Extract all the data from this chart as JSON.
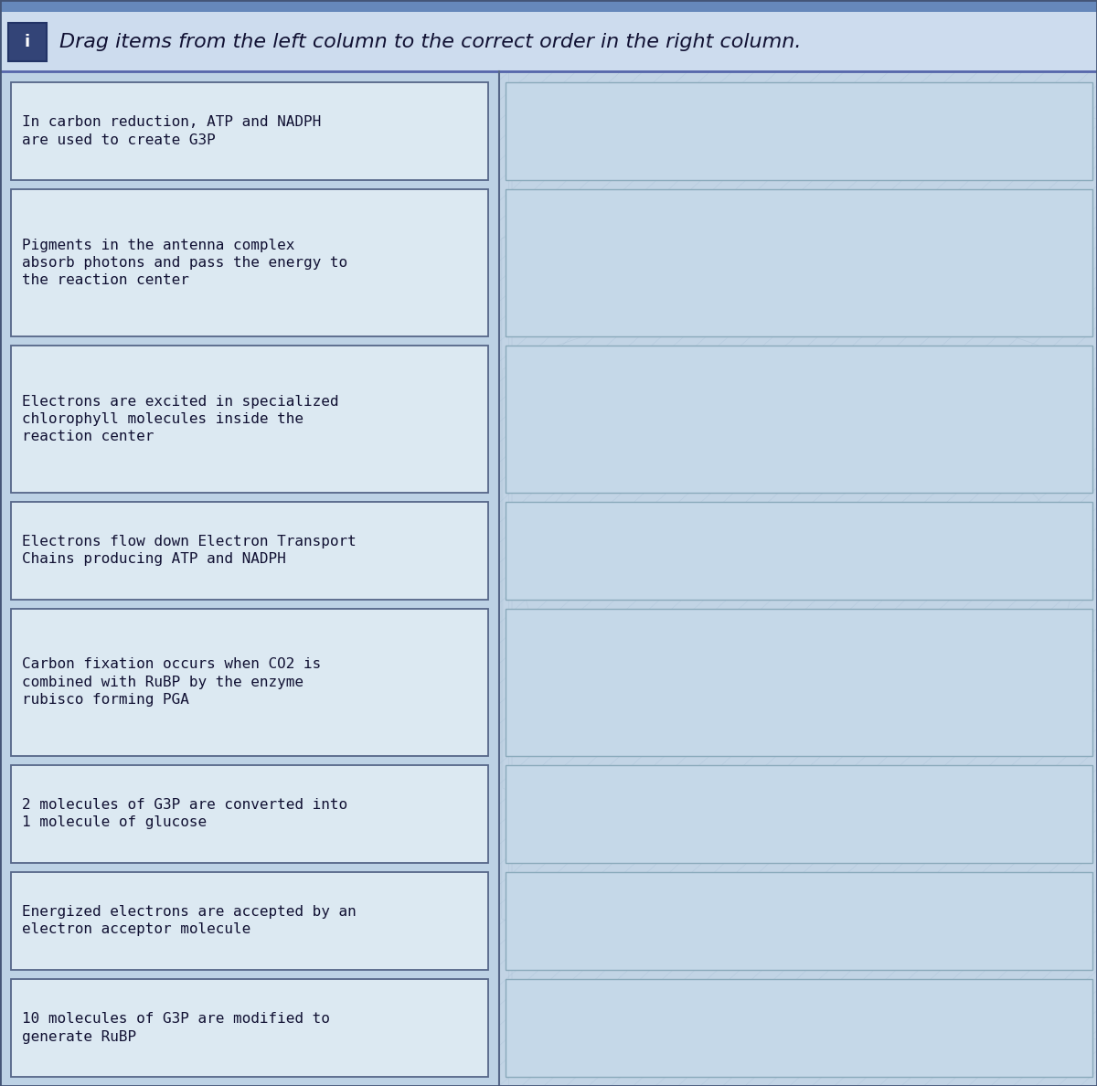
{
  "title": "Drag items from the left column to the correct order in the right column.",
  "title_icon": "i",
  "background_color": "#b8cfe8",
  "header_bg": "#cddcee",
  "top_stripe_color": "#6688bb",
  "header_line_color": "#5566aa",
  "box_bg": "#dce9f2",
  "box_border": "#556688",
  "right_box_border": "#8aaabb",
  "right_box_bg": "#c5d8e8",
  "text_color": "#111133",
  "header_text_color": "#111133",
  "icon_bg": "#334477",
  "watermark_color": "#a0b8cc",
  "left_items": [
    "In carbon reduction, ATP and NADPH\nare used to create G3P",
    "Pigments in the antenna complex\nabsorb photons and pass the energy to\nthe reaction center",
    "Electrons are excited in specialized\nchlorophyll molecules inside the\nreaction center",
    "Electrons flow down Electron Transport\nChains producing ATP and NADPH",
    "Carbon fixation occurs when CO2 is\ncombined with RuBP by the enzyme\nrubisco forming PGA",
    "2 molecules of G3P are converted into\n1 molecule of glucose",
    "Energized electrons are accepted by an\nelectron acceptor molecule",
    "10 molecules of G3P are modified to\ngenerate RuBP"
  ],
  "line_heights": [
    2,
    3,
    3,
    2,
    3,
    2,
    2,
    2
  ],
  "fig_width": 12.0,
  "fig_height": 11.88
}
